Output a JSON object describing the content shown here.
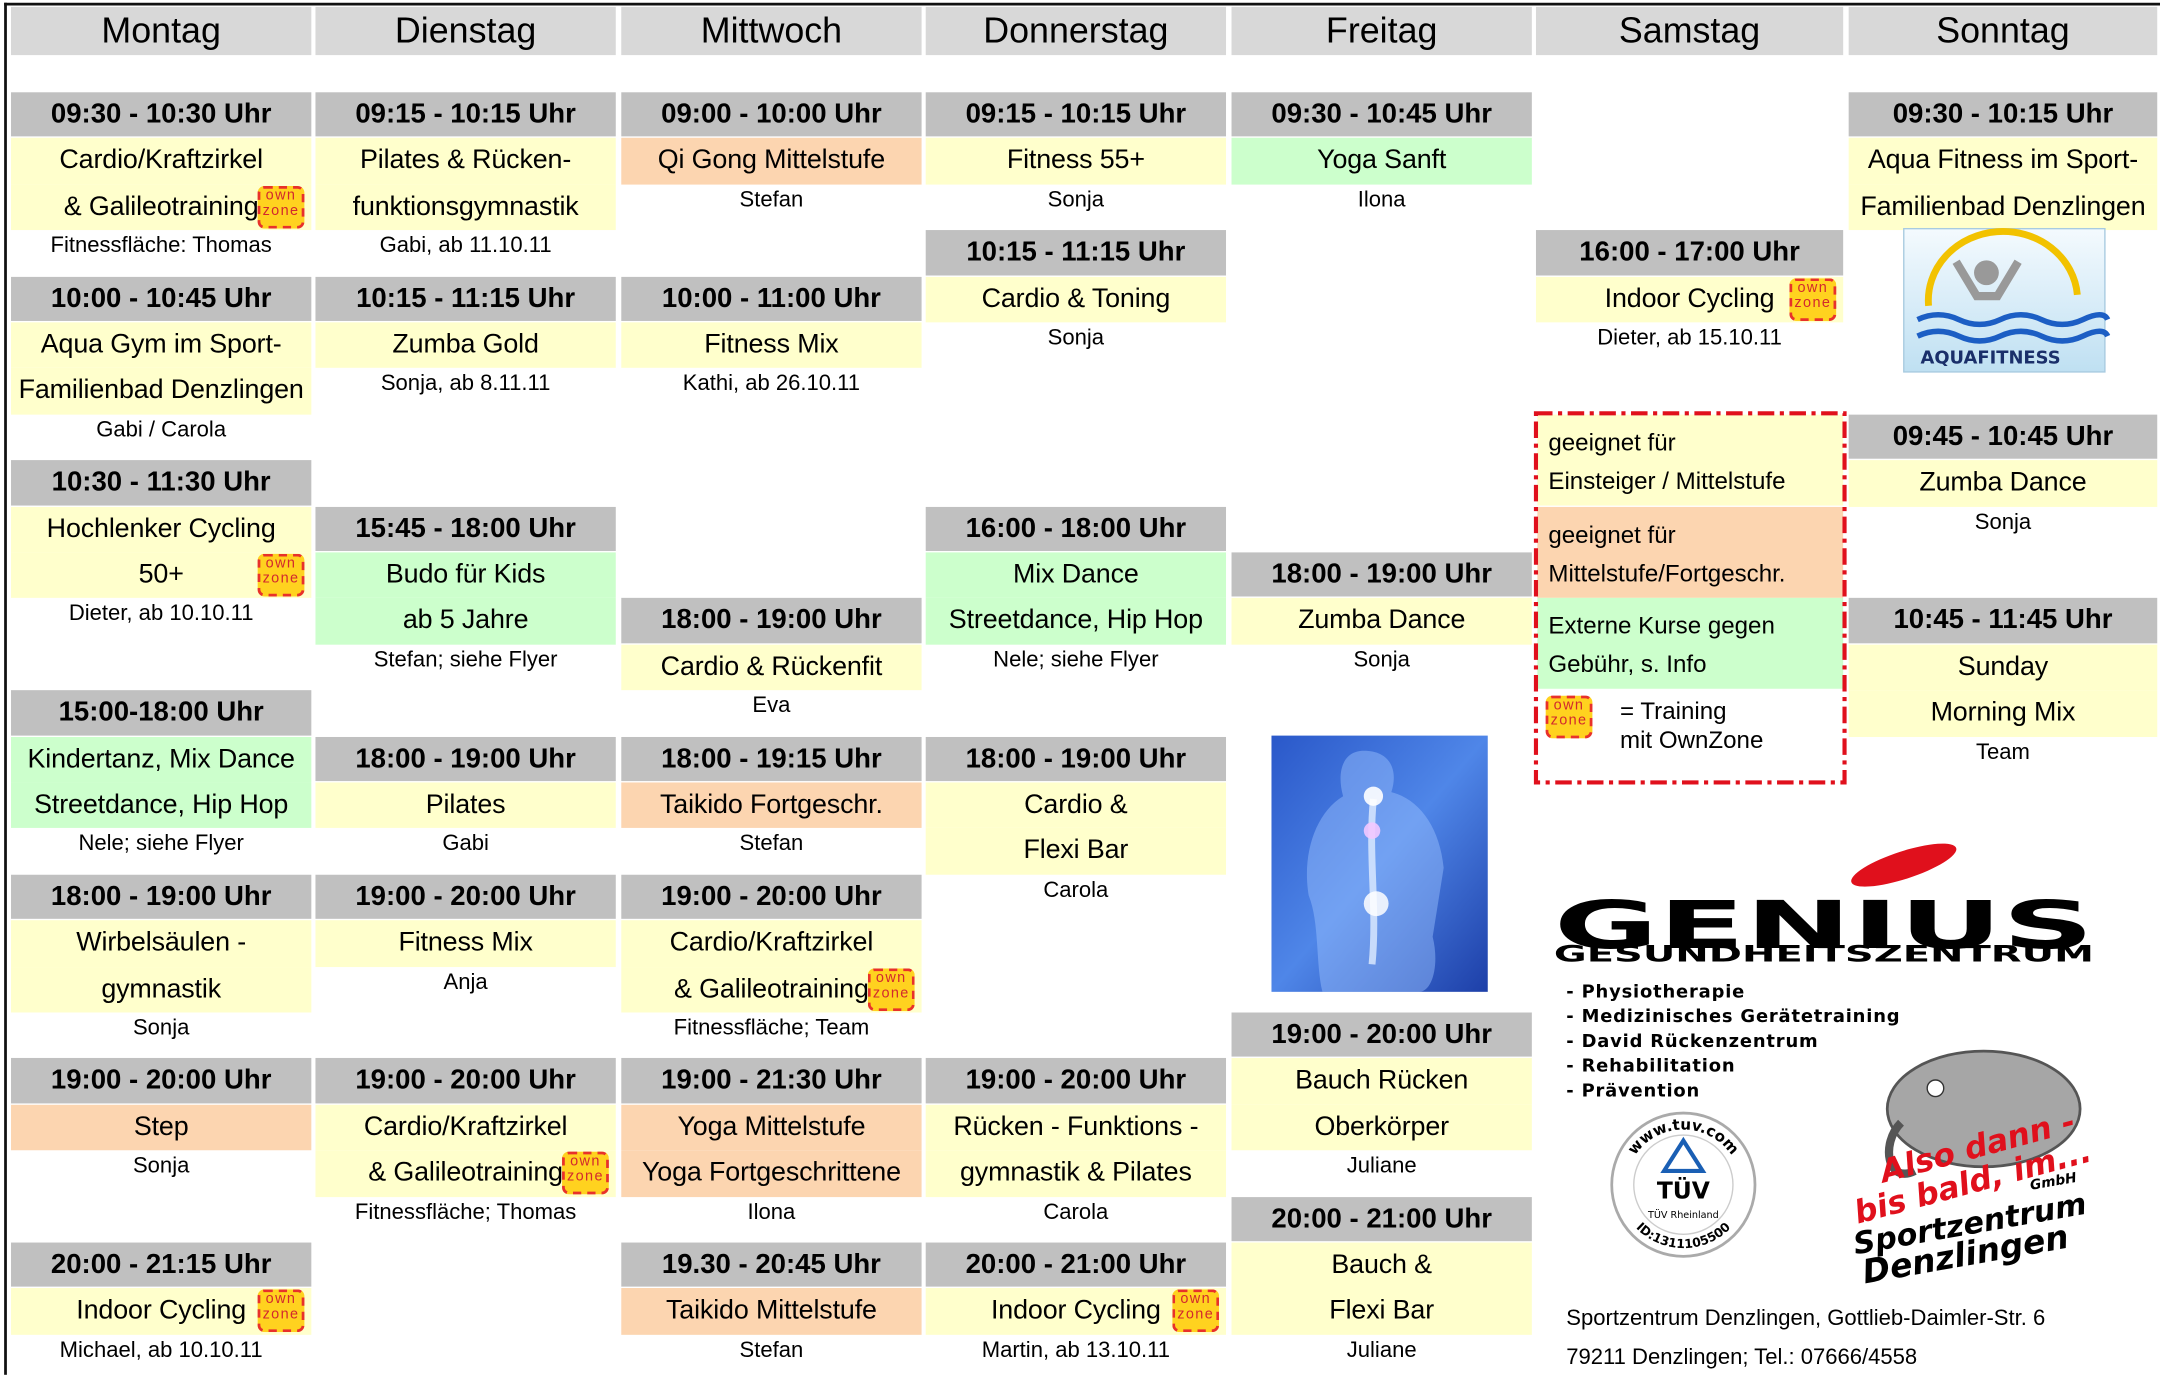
{
  "badge": [
    "own",
    "zone"
  ],
  "days": [
    {
      "name": "Montag",
      "classes": [
        {
          "time": "09:30 - 10:30 Uhr",
          "lines": [
            "Cardio/Kraftzirkel",
            "& Galileotraining"
          ],
          "note": "Fitnessfläche: Thomas",
          "color": "#ffffcc",
          "ownzone": true
        },
        {
          "time": "10:00 - 10:45 Uhr",
          "lines": [
            "Aqua Gym im Sport-",
            "Familienbad Denzlingen"
          ],
          "note": "Gabi / Carola",
          "color": "#ffffcc"
        },
        {
          "time": "10:30 - 11:30 Uhr",
          "lines": [
            "Hochlenker Cycling",
            "50+"
          ],
          "note": "Dieter, ab 10.10.11",
          "color": "#ffffcc",
          "ownzone": true
        },
        {
          "time": "15:00-18:00 Uhr",
          "lines": [
            "Kindertanz, Mix Dance",
            "Streetdance, Hip Hop"
          ],
          "note": "Nele; siehe Flyer",
          "color": "#ccffcc"
        },
        {
          "time": "18:00 - 19:00 Uhr",
          "lines": [
            "Wirbelsäulen -",
            "gymnastik"
          ],
          "note": "Sonja",
          "color": "#ffffcc"
        },
        {
          "time": "19:00 - 20:00 Uhr",
          "lines": [
            "Step"
          ],
          "note": "Sonja",
          "color": "#fcd5b0"
        },
        {
          "time": "20:00 - 21:15 Uhr",
          "lines": [
            "Indoor Cycling"
          ],
          "note": "Michael, ab 10.10.11",
          "color": "#ffffcc",
          "ownzone": true
        }
      ]
    },
    {
      "name": "Dienstag",
      "classes": [
        {
          "time": "09:15 - 10:15 Uhr",
          "lines": [
            "Pilates & Rücken-",
            "funktionsgymnastik"
          ],
          "note": "Gabi, ab 11.10.11",
          "color": "#ffffcc"
        },
        {
          "time": "10:15 - 11:15 Uhr",
          "lines": [
            "Zumba Gold"
          ],
          "note": "Sonja, ab 8.11.11",
          "color": "#ffffcc"
        },
        {
          "time": "15:45 - 18:00 Uhr",
          "lines": [
            "Budo für Kids",
            "ab 5 Jahre"
          ],
          "note": "Stefan; siehe Flyer",
          "color": "#ccffcc"
        },
        {
          "time": "18:00 - 19:00 Uhr",
          "lines": [
            "Pilates"
          ],
          "note": "Gabi",
          "color": "#ffffcc"
        },
        {
          "time": "19:00 - 20:00 Uhr",
          "lines": [
            "Fitness Mix"
          ],
          "note": "Anja",
          "color": "#ffffcc"
        },
        {
          "time": "19:00 - 20:00 Uhr",
          "lines": [
            "Cardio/Kraftzirkel",
            "& Galileotraining"
          ],
          "note": "Fitnessfläche; Thomas",
          "color": "#ffffcc",
          "ownzone": true
        }
      ]
    },
    {
      "name": "Mittwoch",
      "classes": [
        {
          "time": "09:00 - 10:00 Uhr",
          "lines": [
            "Qi Gong Mittelstufe"
          ],
          "note": "Stefan",
          "color": "#fcd5b0"
        },
        {
          "time": "10:00 - 11:00 Uhr",
          "lines": [
            "Fitness Mix"
          ],
          "note": "Kathi, ab 26.10.11",
          "color": "#ffffcc"
        },
        {
          "time": "18:00 - 19:00 Uhr",
          "lines": [
            "Cardio & Rückenfit"
          ],
          "note": "Eva",
          "color": "#ffffcc"
        },
        {
          "time": "18:00 - 19:15 Uhr",
          "lines": [
            "Taikido Fortgeschr."
          ],
          "note": "Stefan",
          "color": "#fcd5b0"
        },
        {
          "time": "19:00 - 20:00 Uhr",
          "lines": [
            "Cardio/Kraftzirkel",
            "& Galileotraining"
          ],
          "note": "Fitnessfläche; Team",
          "color": "#ffffcc",
          "ownzone": true
        },
        {
          "time": "19:00 - 21:30 Uhr",
          "lines": [
            "Yoga Mittelstufe",
            "Yoga Fortgeschrittene"
          ],
          "note": "Ilona",
          "color": "#fcd5b0"
        },
        {
          "time": "19.30 - 20:45 Uhr",
          "lines": [
            "Taikido Mittelstufe"
          ],
          "note": "Stefan",
          "color": "#fcd5b0"
        }
      ]
    },
    {
      "name": "Donnerstag",
      "classes": [
        {
          "time": "09:15 - 10:15 Uhr",
          "lines": [
            "Fitness 55+"
          ],
          "note": "Sonja",
          "color": "#ffffcc"
        },
        {
          "time": "10:15 - 11:15 Uhr",
          "lines": [
            "Cardio & Toning"
          ],
          "note": "Sonja",
          "color": "#ffffcc"
        },
        {
          "time": "16:00 - 18:00 Uhr",
          "lines": [
            "Mix Dance",
            "Streetdance, Hip Hop"
          ],
          "note": "Nele; siehe Flyer",
          "color": "#ccffcc"
        },
        {
          "time": "18:00 - 19:00 Uhr",
          "lines": [
            "Cardio &",
            "Flexi Bar"
          ],
          "note": "Carola",
          "color": "#ffffcc"
        },
        {
          "time": "19:00 - 20:00 Uhr",
          "lines": [
            "Rücken - Funktions -",
            "gymnastik & Pilates"
          ],
          "note": "Carola",
          "color": "#ffffcc"
        },
        {
          "time": "20:00 - 21:00 Uhr",
          "lines": [
            "Indoor Cycling"
          ],
          "note": "Martin, ab 13.10.11",
          "color": "#ffffcc",
          "ownzone": true
        }
      ]
    },
    {
      "name": "Freitag",
      "classes": [
        {
          "time": "09:30 - 10:45 Uhr",
          "lines": [
            "Yoga Sanft"
          ],
          "note": "Ilona",
          "color": "#ccffcc"
        },
        {
          "time": "18:00 - 19:00 Uhr",
          "lines": [
            "Zumba Dance"
          ],
          "note": "Sonja",
          "color": "#ffffcc"
        },
        {
          "time": "19:00 - 20:00 Uhr",
          "lines": [
            "Bauch Rücken",
            "Oberkörper"
          ],
          "note": "Juliane",
          "color": "#ffffcc"
        },
        {
          "time": "20:00 - 21:00 Uhr",
          "lines": [
            "Bauch &",
            "Flexi Bar"
          ],
          "note": "Juliane",
          "color": "#ffffcc"
        }
      ]
    },
    {
      "name": "Samstag",
      "classes": [
        {
          "time": "16:00 - 17:00 Uhr",
          "lines": [
            "Indoor Cycling"
          ],
          "note": "Dieter, ab 15.10.11",
          "color": "#ffffcc",
          "ownzone": true
        }
      ]
    },
    {
      "name": "Sonntag",
      "classes": [
        {
          "time": "09:30 - 10:15 Uhr",
          "lines": [
            "Aqua Fitness im Sport-",
            "Familienbad Denzlingen"
          ],
          "color": "#ffffcc"
        },
        {
          "time": "09:45 - 10:45 Uhr",
          "lines": [
            "Zumba Dance"
          ],
          "note": "Sonja",
          "color": "#ffffcc"
        },
        {
          "time": "10:45 - 11:45 Uhr",
          "lines": [
            "Sunday",
            "Morning Mix"
          ],
          "note": "Team",
          "color": "#ffffcc"
        }
      ]
    }
  ],
  "legend": {
    "items": [
      {
        "lines": [
          "geeignet für",
          "Einsteiger / Mittelstufe"
        ],
        "color": "#ffffcc"
      },
      {
        "lines": [
          "geeignet für",
          "Mittelstufe/Fortgeschr."
        ],
        "color": "#fcd5b0"
      },
      {
        "lines": [
          "Externe Kurse gegen",
          "Gebühr, s. Info"
        ],
        "color": "#ccffcc"
      },
      {
        "lines": [
          "= Training",
          "mit OwnZone"
        ],
        "ownzone": true
      }
    ]
  },
  "aqua_logo": "AQUAFITNESS",
  "genius": {
    "brand": "GENIUS",
    "subtitle": "GESUNDHEITSZENTRUM",
    "services": [
      "- Physiotherapie",
      "- Medizinisches Gerätetraining",
      "- David Rückenzentrum",
      "- Rehabilitation",
      "- Prävention"
    ]
  },
  "tuv": {
    "url": "www.tuv.com",
    "mark": "TÜV",
    "name": "TÜV Rheinland",
    "id": "ID:1311105500"
  },
  "stamp": {
    "slogan": [
      "Also dann -",
      "bis bald, im..."
    ],
    "name": [
      "Sportzentrum",
      "Denzlingen"
    ],
    "suffix": "GmbH"
  },
  "address": [
    "Sportzentrum Denzlingen, Gottlieb-Daimler-Str. 6",
    "79211 Denzlingen; Tel.: 07666/4558"
  ]
}
